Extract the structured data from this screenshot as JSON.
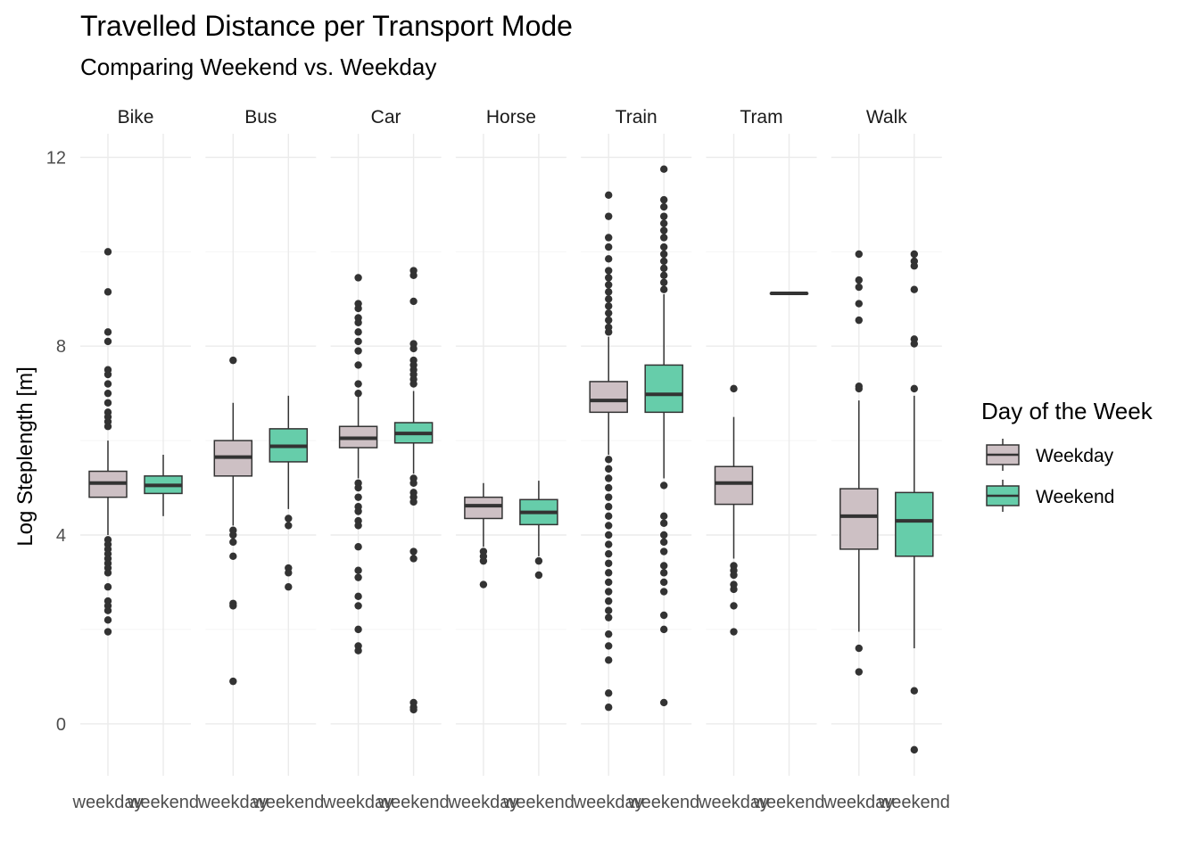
{
  "chart_data": {
    "type": "boxplot",
    "title": "Travelled Distance per Transport Mode",
    "subtitle": "Comparing Weekend vs. Weekday",
    "ylabel": "Log Steplength [m]",
    "ylim": [
      -1.1,
      12.5
    ],
    "yticks": [
      0,
      4,
      8,
      12
    ],
    "facets": [
      "Bike",
      "Bus",
      "Car",
      "Horse",
      "Train",
      "Tram",
      "Walk"
    ],
    "x_categories": [
      "weekday",
      "weekend"
    ],
    "legend": {
      "title": "Day of the Week",
      "position": "right",
      "items": [
        {
          "label": "Weekday",
          "color": "#cdc0c4"
        },
        {
          "label": "Weekend",
          "color": "#66cdaa"
        }
      ]
    },
    "grid": true,
    "series": [
      {
        "facet": "Bike",
        "group": "weekday",
        "min": 4.0,
        "q1": 4.8,
        "median": 5.1,
        "q3": 5.35,
        "max": 6.0,
        "outliers": [
          10.0,
          9.15,
          8.3,
          8.1,
          7.5,
          7.4,
          7.2,
          7.0,
          6.8,
          6.6,
          6.5,
          6.4,
          6.3,
          3.9,
          3.8,
          3.7,
          3.6,
          3.5,
          3.4,
          3.3,
          3.2,
          2.9,
          2.6,
          2.5,
          2.4,
          2.2,
          1.95
        ]
      },
      {
        "facet": "Bike",
        "group": "weekend",
        "min": 4.4,
        "q1": 4.88,
        "median": 5.05,
        "q3": 5.25,
        "max": 5.7,
        "outliers": []
      },
      {
        "facet": "Bus",
        "group": "weekday",
        "min": 4.2,
        "q1": 5.25,
        "median": 5.65,
        "q3": 6.0,
        "max": 6.8,
        "outliers": [
          7.7,
          4.1,
          4.0,
          3.85,
          3.55,
          2.55,
          2.5,
          0.9
        ]
      },
      {
        "facet": "Bus",
        "group": "weekend",
        "min": 4.55,
        "q1": 5.55,
        "median": 5.88,
        "q3": 6.25,
        "max": 6.95,
        "outliers": [
          4.35,
          4.2,
          3.3,
          3.2,
          2.9
        ]
      },
      {
        "facet": "Car",
        "group": "weekday",
        "min": 5.2,
        "q1": 5.85,
        "median": 6.05,
        "q3": 6.3,
        "max": 6.95,
        "outliers": [
          9.45,
          8.9,
          8.8,
          8.6,
          8.5,
          8.3,
          8.1,
          7.9,
          7.6,
          7.2,
          7.0,
          5.1,
          5.0,
          4.8,
          4.6,
          4.5,
          4.3,
          4.2,
          3.75,
          3.25,
          3.1,
          2.7,
          2.5,
          2.0,
          1.65,
          1.55
        ]
      },
      {
        "facet": "Car",
        "group": "weekend",
        "min": 5.3,
        "q1": 5.95,
        "median": 6.15,
        "q3": 6.38,
        "max": 7.05,
        "outliers": [
          9.6,
          9.5,
          8.95,
          8.05,
          7.95,
          7.7,
          7.6,
          7.5,
          7.4,
          7.3,
          7.2,
          5.2,
          5.1,
          4.9,
          4.8,
          4.7,
          3.65,
          3.5,
          0.45,
          0.35,
          0.3
        ]
      },
      {
        "facet": "Horse",
        "group": "weekday",
        "min": 3.75,
        "q1": 4.35,
        "median": 4.62,
        "q3": 4.8,
        "max": 5.1,
        "outliers": [
          3.65,
          3.55,
          3.45,
          2.95
        ]
      },
      {
        "facet": "Horse",
        "group": "weekend",
        "min": 3.55,
        "q1": 4.22,
        "median": 4.48,
        "q3": 4.75,
        "max": 5.15,
        "outliers": [
          3.45,
          3.15
        ]
      },
      {
        "facet": "Train",
        "group": "weekday",
        "min": 5.7,
        "q1": 6.6,
        "median": 6.85,
        "q3": 7.25,
        "max": 8.2,
        "outliers": [
          11.2,
          10.75,
          10.3,
          10.1,
          9.85,
          9.6,
          9.45,
          9.3,
          9.15,
          9.0,
          8.85,
          8.7,
          8.55,
          8.4,
          8.3,
          5.6,
          5.4,
          5.2,
          5.0,
          4.8,
          4.6,
          4.4,
          4.2,
          4.0,
          3.8,
          3.6,
          3.4,
          3.2,
          3.0,
          2.8,
          2.6,
          2.4,
          2.25,
          1.9,
          1.65,
          1.35,
          0.65,
          0.35
        ]
      },
      {
        "facet": "Train",
        "group": "weekend",
        "min": 5.2,
        "q1": 6.6,
        "median": 6.98,
        "q3": 7.6,
        "max": 9.1,
        "outliers": [
          11.75,
          11.1,
          10.95,
          10.75,
          10.6,
          10.45,
          10.3,
          10.1,
          9.95,
          9.8,
          9.65,
          9.5,
          9.35,
          9.2,
          5.05,
          4.4,
          4.25,
          4.0,
          3.85,
          3.65,
          3.35,
          3.2,
          3.0,
          2.8,
          2.3,
          2.0,
          0.45
        ]
      },
      {
        "facet": "Tram",
        "group": "weekday",
        "min": 3.5,
        "q1": 4.65,
        "median": 5.1,
        "q3": 5.45,
        "max": 6.5,
        "outliers": [
          7.1,
          3.35,
          3.25,
          3.15,
          2.95,
          2.85,
          2.5,
          1.95
        ]
      },
      {
        "facet": "Tram",
        "group": "weekend",
        "min": 9.12,
        "q1": 9.12,
        "median": 9.12,
        "q3": 9.12,
        "max": 9.12,
        "outliers": []
      },
      {
        "facet": "Walk",
        "group": "weekday",
        "min": 1.95,
        "q1": 3.7,
        "median": 4.4,
        "q3": 4.98,
        "max": 6.85,
        "outliers": [
          9.95,
          9.4,
          9.25,
          8.9,
          8.55,
          7.15,
          7.1,
          1.6,
          1.1
        ]
      },
      {
        "facet": "Walk",
        "group": "weekend",
        "min": 1.6,
        "q1": 3.55,
        "median": 4.3,
        "q3": 4.9,
        "max": 6.95,
        "outliers": [
          9.95,
          9.8,
          9.7,
          9.2,
          8.15,
          8.05,
          7.1,
          0.7,
          -0.55
        ]
      }
    ]
  }
}
